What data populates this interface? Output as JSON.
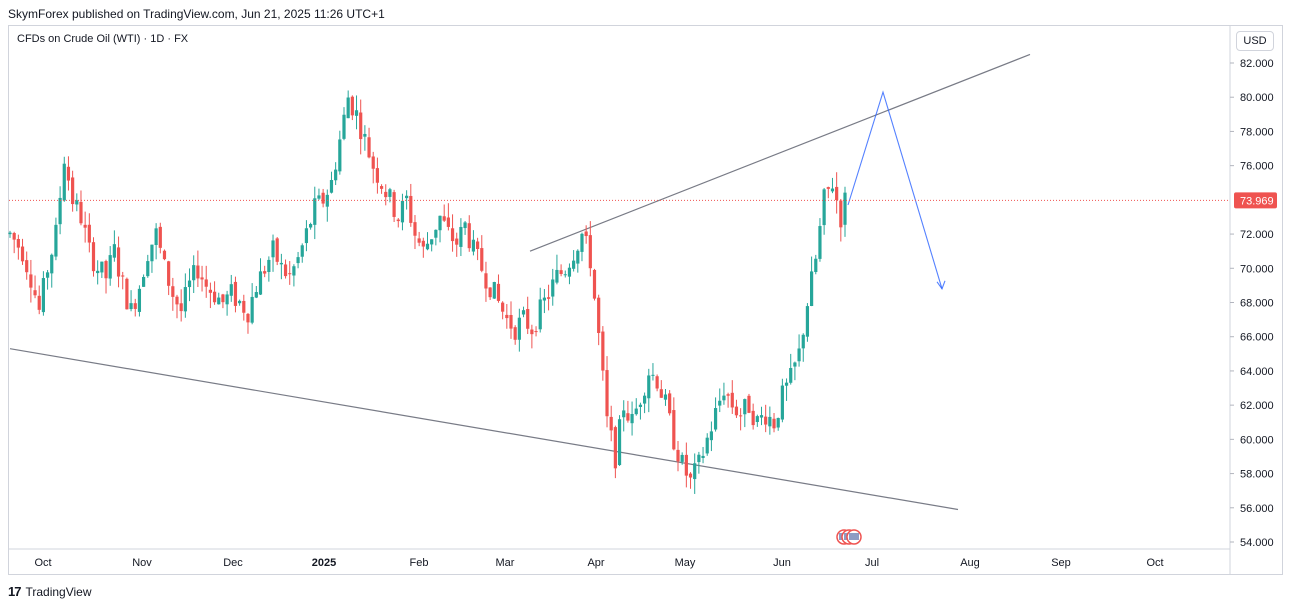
{
  "header": {
    "published": "SkymForex published on TradingView.com, Jun 21, 2025 11:26 UTC+1",
    "symbol": "CFDs on Crude Oil (WTI) · 1D · FX",
    "currency": "USD"
  },
  "footer": {
    "brand": "TradingView",
    "logo_text": "17"
  },
  "colors": {
    "up": "#26a69a",
    "down": "#ef5350",
    "trendline": "#787b86",
    "projection": "#2962ff",
    "last_price": "#ef5350",
    "grid": "#d1d4dc"
  },
  "chart_data": {
    "type": "candlestick",
    "title": "CFDs on Crude Oil (WTI) · 1D · FX",
    "ylim": [
      53.5,
      83.2
    ],
    "y_ticks": [
      "82.000",
      "80.000",
      "78.000",
      "76.000",
      "72.000",
      "70.000",
      "68.000",
      "66.000",
      "64.000",
      "62.000",
      "60.000",
      "58.000",
      "56.000",
      "54.000"
    ],
    "x_ticks": [
      "Oct",
      "Nov",
      "Dec",
      "2025",
      "Feb",
      "Mar",
      "Apr",
      "May",
      "Jun",
      "Jul",
      "Aug",
      "Sep",
      "Oct"
    ],
    "last_price": "73.969",
    "last_price_value": 73.969,
    "price_path": [
      [
        0,
        72.0
      ],
      [
        3,
        71.0
      ],
      [
        5,
        69.5
      ],
      [
        7,
        67.5
      ],
      [
        9,
        70.0
      ],
      [
        11,
        72.0
      ],
      [
        13,
        76.5
      ],
      [
        15,
        74.0
      ],
      [
        17,
        73.0
      ],
      [
        19,
        71.0
      ],
      [
        21,
        70.0
      ],
      [
        23,
        69.5
      ],
      [
        25,
        71.0
      ],
      [
        27,
        69.0
      ],
      [
        29,
        67.5
      ],
      [
        31,
        69.0
      ],
      [
        33,
        71.0
      ],
      [
        35,
        72.0
      ],
      [
        37,
        70.0
      ],
      [
        39,
        68.5
      ],
      [
        41,
        67.5
      ],
      [
        43,
        69.0
      ],
      [
        45,
        70.0
      ],
      [
        47,
        69.0
      ],
      [
        49,
        68.5
      ],
      [
        51,
        68.0
      ],
      [
        53,
        68.5
      ],
      [
        55,
        68.0
      ],
      [
        57,
        67.5
      ],
      [
        59,
        69.0
      ],
      [
        61,
        70.0
      ],
      [
        63,
        71.0
      ],
      [
        65,
        70.0
      ],
      [
        67,
        69.5
      ],
      [
        69,
        70.5
      ],
      [
        71,
        72.0
      ],
      [
        73,
        73.5
      ],
      [
        75,
        74.0
      ],
      [
        77,
        75.0
      ],
      [
        79,
        77.5
      ],
      [
        81,
        80.0
      ],
      [
        83,
        79.0
      ],
      [
        85,
        77.5
      ],
      [
        87,
        76.0
      ],
      [
        89,
        75.0
      ],
      [
        91,
        74.0
      ],
      [
        93,
        73.0
      ],
      [
        95,
        74.0
      ],
      [
        97,
        72.0
      ],
      [
        99,
        71.0
      ],
      [
        101,
        72.0
      ],
      [
        103,
        73.0
      ],
      [
        105,
        72.0
      ],
      [
        107,
        71.5
      ],
      [
        109,
        72.5
      ],
      [
        111,
        71.0
      ],
      [
        113,
        70.0
      ],
      [
        115,
        69.0
      ],
      [
        117,
        68.0
      ],
      [
        119,
        67.0
      ],
      [
        121,
        66.5
      ],
      [
        123,
        67.0
      ],
      [
        125,
        66.5
      ],
      [
        127,
        67.5
      ],
      [
        129,
        68.5
      ],
      [
        131,
        69.5
      ],
      [
        133,
        70.0
      ],
      [
        135,
        71.0
      ],
      [
        137,
        72.0
      ],
      [
        139,
        70.5
      ],
      [
        141,
        66.0
      ],
      [
        143,
        61.0
      ],
      [
        145,
        59.0
      ],
      [
        147,
        62.0
      ],
      [
        149,
        61.0
      ],
      [
        151,
        62.5
      ],
      [
        153,
        64.0
      ],
      [
        155,
        63.5
      ],
      [
        157,
        62.0
      ],
      [
        159,
        60.0
      ],
      [
        161,
        58.5
      ],
      [
        163,
        57.5
      ],
      [
        165,
        58.5
      ],
      [
        167,
        60.0
      ],
      [
        169,
        61.5
      ],
      [
        171,
        63.0
      ],
      [
        173,
        62.0
      ],
      [
        175,
        61.5
      ],
      [
        177,
        62.0
      ],
      [
        179,
        61.0
      ],
      [
        181,
        61.5
      ],
      [
        183,
        61.0
      ],
      [
        185,
        62.5
      ],
      [
        187,
        63.5
      ],
      [
        189,
        65.0
      ],
      [
        191,
        68.0
      ],
      [
        193,
        70.5
      ],
      [
        195,
        74.0
      ],
      [
        197,
        75.0
      ],
      [
        199,
        73.0
      ],
      [
        200,
        73.969
      ]
    ],
    "annotations": {
      "upper_trendline": [
        [
          530,
          71.0
        ],
        [
          1030,
          82.5
        ]
      ],
      "lower_trendline": [
        [
          10,
          65.3
        ],
        [
          958,
          55.9
        ]
      ],
      "projection_path": [
        [
          848,
          73.7
        ],
        [
          883,
          80.3
        ],
        [
          942,
          68.8
        ]
      ]
    }
  }
}
